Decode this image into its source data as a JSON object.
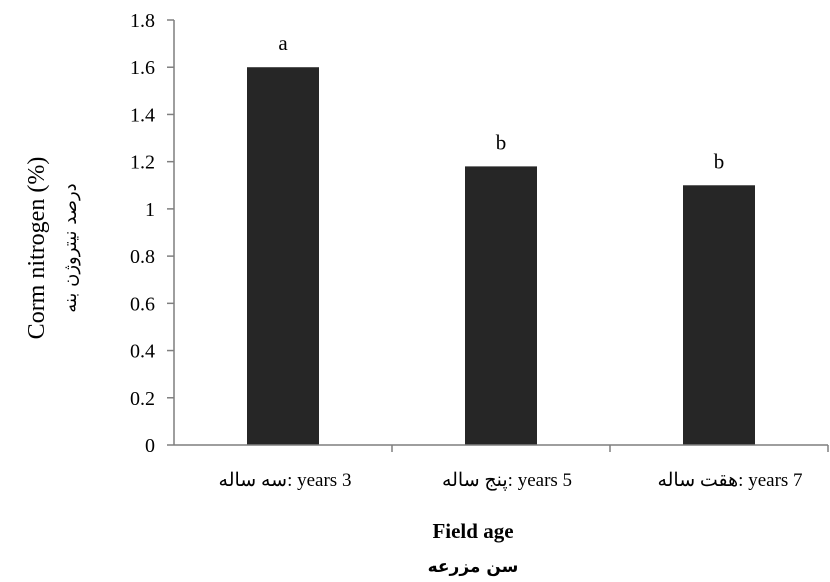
{
  "chart_data": {
    "type": "bar",
    "categories": [
      "3 years :سه ساله",
      "5 years :پنج ساله",
      "7 years :هقت ساله"
    ],
    "values": [
      1.6,
      1.18,
      1.1
    ],
    "data_labels": [
      "a",
      "b",
      "b"
    ],
    "ylabel": "Corm nitrogen (%)",
    "ylabel_secondary": "درصد نیتروژن بنه",
    "xlabel": "Field age",
    "xlabel_secondary": "سن مزرعه",
    "ylim": [
      0,
      1.8
    ],
    "yticks": [
      "0",
      "0.2",
      "0.4",
      "0.6",
      "0.8",
      "1",
      "1.2",
      "1.4",
      "1.6",
      "1.8"
    ],
    "grid": false,
    "legend": "none",
    "bar_color": "#262626"
  }
}
